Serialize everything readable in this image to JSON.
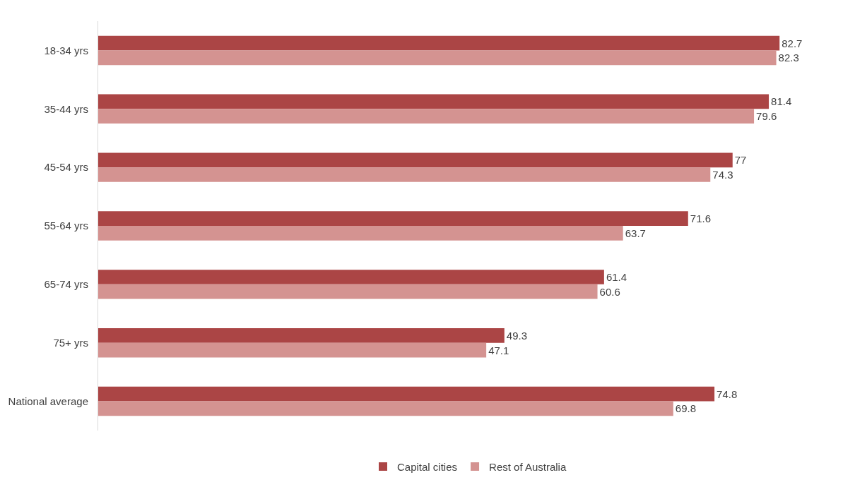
{
  "chart_data": {
    "type": "bar",
    "orientation": "horizontal",
    "categories": [
      "18-34 yrs",
      "35-44 yrs",
      "45-54 yrs",
      "55-64 yrs",
      "65-74 yrs",
      "75+ yrs",
      "National average"
    ],
    "series": [
      {
        "name": "Capital cities",
        "color": "#ab4545",
        "values": [
          82.7,
          81.4,
          77,
          71.6,
          61.4,
          49.3,
          74.8
        ]
      },
      {
        "name": "Rest of Australia",
        "color": "#d49391",
        "values": [
          82.3,
          79.6,
          74.3,
          63.7,
          60.6,
          47.1,
          69.8
        ]
      }
    ],
    "data_labels": true,
    "legend": "bottom",
    "tick_labels": "y"
  }
}
